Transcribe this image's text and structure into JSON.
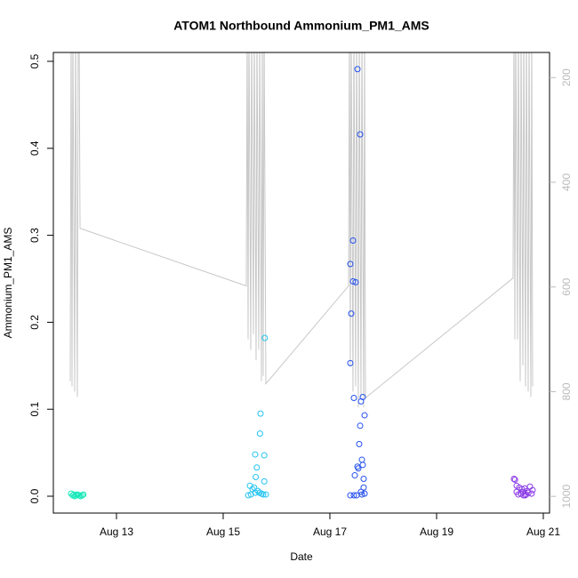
{
  "chart_data": {
    "type": "scatter",
    "title": "ATOM1 Northbound Ammonium_PM1_AMS",
    "x_label": "Date",
    "y_label": "Ammonium_PM1_AMS",
    "xlim": [
      11.817,
      21.117
    ],
    "xticks": [
      {
        "value": 13,
        "label": "Aug 13"
      },
      {
        "value": 15,
        "label": "Aug 15"
      },
      {
        "value": 17,
        "label": "Aug 17"
      },
      {
        "value": 19,
        "label": "Aug 19"
      },
      {
        "value": 21,
        "label": "Aug 21"
      }
    ],
    "ylim": [
      -0.0194,
      0.5102
    ],
    "yticks": [
      {
        "value": 0,
        "label": "0.0"
      },
      0.1,
      0.2,
      0.3,
      0.4,
      0.5
    ],
    "y2lim": [
      1032,
      152
    ],
    "y2ticks": [
      200,
      400,
      600,
      800,
      1000
    ],
    "series": [
      {
        "type": "line",
        "axis": "y2",
        "color": "#c8c8c8",
        "x": [
          12.133,
          12.15,
          12.167,
          12.183,
          12.217,
          12.233,
          12.267,
          12.283,
          12.3,
          12.317,
          15.433,
          15.45,
          15.467,
          15.483,
          15.517,
          15.533,
          15.567,
          15.583,
          15.617,
          15.633,
          15.667,
          15.683,
          15.717,
          15.733,
          15.75,
          15.767,
          15.8,
          17.35,
          17.367,
          17.383,
          17.4,
          17.433,
          17.45,
          17.483,
          17.5,
          17.533,
          17.55,
          17.583,
          17.6,
          17.633,
          17.65,
          17.667,
          20.433,
          20.45,
          20.467,
          20.483,
          20.517,
          20.533,
          20.567,
          20.583,
          20.617,
          20.633,
          20.667,
          20.683,
          20.717,
          20.733,
          20.767,
          20.783,
          20.8
        ],
        "values": [
          780,
          100,
          790,
          100,
          800,
          100,
          810,
          100,
          100,
          488,
          598,
          100,
          700,
          100,
          720,
          100,
          690,
          100,
          740,
          100,
          720,
          100,
          780,
          100,
          770,
          100,
          785,
          598,
          100,
          750,
          100,
          800,
          100,
          790,
          100,
          830,
          100,
          810,
          100,
          830,
          100,
          812,
          583,
          100,
          700,
          100,
          700,
          100,
          780,
          100,
          750,
          100,
          790,
          100,
          800,
          100,
          810,
          100,
          790
        ]
      },
      {
        "color": "#12e8b8",
        "x": [
          12.15,
          12.18,
          12.2,
          12.22,
          12.25,
          12.27,
          12.3,
          12.33,
          12.36,
          12.38
        ],
        "values": [
          0.003,
          0.001,
          0.002,
          0.0,
          0.001,
          0.002,
          0.001,
          0.0,
          0.001,
          0.002
        ]
      },
      {
        "color": "#22c4f2",
        "x": [
          15.78,
          15.7,
          15.69,
          15.77,
          15.6,
          15.63,
          15.61,
          15.77,
          15.5,
          15.55,
          15.58,
          15.65,
          15.68,
          15.52,
          15.72,
          15.75,
          15.47,
          15.8,
          15.6
        ],
        "values": [
          0.182,
          0.095,
          0.072,
          0.047,
          0.048,
          0.033,
          0.022,
          0.017,
          0.012,
          0.008,
          0.01,
          0.006,
          0.004,
          0.002,
          0.003,
          0.002,
          0.001,
          0.002,
          0.004
        ]
      },
      {
        "color": "#2450ee",
        "x": [
          17.517,
          17.567,
          17.433,
          17.383,
          17.433,
          17.483,
          17.4,
          17.383,
          17.45,
          17.617,
          17.583,
          17.65,
          17.567,
          17.55,
          17.6,
          17.617,
          17.517,
          17.533,
          17.467,
          17.633,
          17.633,
          17.583,
          17.65,
          17.383,
          17.45,
          17.5,
          17.6
        ],
        "values": [
          0.491,
          0.416,
          0.294,
          0.267,
          0.247,
          0.246,
          0.21,
          0.153,
          0.113,
          0.114,
          0.109,
          0.093,
          0.081,
          0.06,
          0.042,
          0.036,
          0.034,
          0.032,
          0.024,
          0.02,
          0.01,
          0.005,
          0.003,
          0.001,
          0.001,
          0.001,
          0.002
        ]
      },
      {
        "color": "#8a3ae6",
        "x": [
          20.45,
          20.47,
          20.5,
          20.55,
          20.6,
          20.65,
          20.7,
          20.75,
          20.5,
          20.58,
          20.63,
          20.68,
          20.72,
          20.78,
          20.8,
          20.53,
          20.62,
          20.66
        ],
        "values": [
          0.02,
          0.019,
          0.012,
          0.01,
          0.008,
          0.009,
          0.006,
          0.011,
          0.005,
          0.003,
          0.001,
          0.002,
          0.004,
          0.003,
          0.007,
          0.002,
          0.005,
          0.001
        ]
      }
    ]
  }
}
